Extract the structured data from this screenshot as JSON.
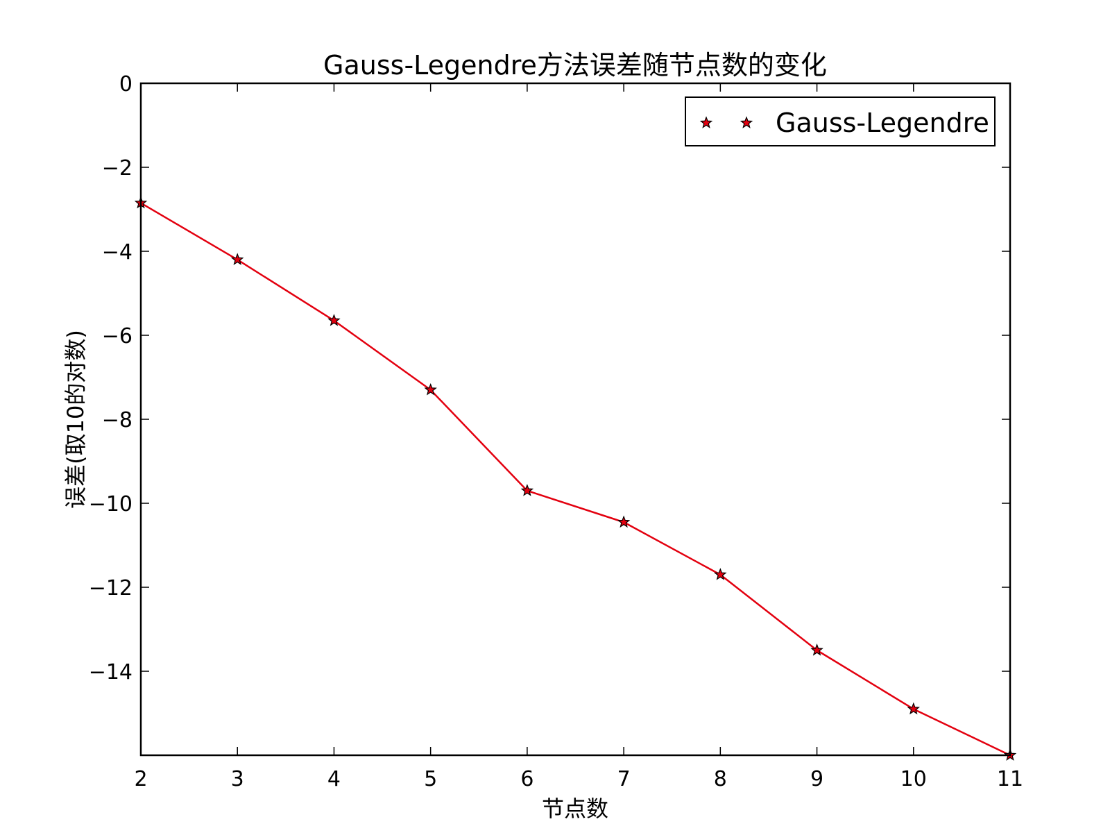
{
  "chart_data": {
    "type": "line",
    "title": "Gauss-Legendre方法误差随节点数的变化",
    "xlabel": "节点数",
    "ylabel": "误差(取10的对数)",
    "xlim": [
      2,
      11
    ],
    "ylim": [
      -16,
      0
    ],
    "xticks": [
      2,
      3,
      4,
      5,
      6,
      7,
      8,
      9,
      10,
      11
    ],
    "yticks": [
      0,
      -2,
      -4,
      -6,
      -8,
      -10,
      -12,
      -14
    ],
    "xtick_labels": [
      "2",
      "3",
      "4",
      "5",
      "6",
      "7",
      "8",
      "9",
      "10",
      "11"
    ],
    "ytick_labels": [
      "0",
      "−2",
      "−4",
      "−6",
      "−8",
      "−10",
      "−12",
      "−14"
    ],
    "grid": false,
    "legend_position": "top-right",
    "series": [
      {
        "name": "Gauss-Legendre",
        "color": "#e3000f",
        "marker": "star",
        "x": [
          2,
          3,
          4,
          5,
          6,
          7,
          8,
          9,
          10,
          11
        ],
        "y": [
          -2.85,
          -4.2,
          -5.65,
          -7.3,
          -9.7,
          -10.45,
          -11.7,
          -13.5,
          -14.9,
          -16.0
        ]
      }
    ]
  }
}
